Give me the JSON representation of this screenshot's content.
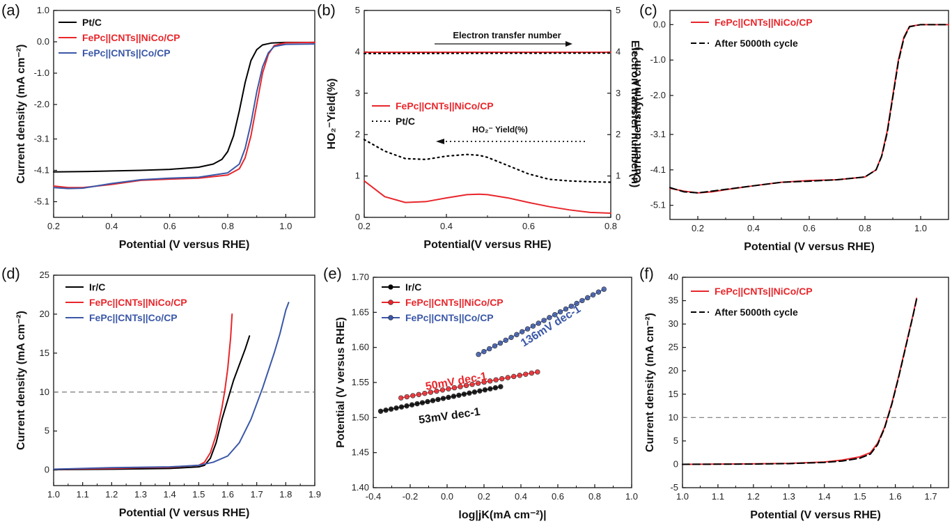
{
  "chart_data": [
    {
      "id": "a",
      "type": "line",
      "panel_label": "(a)",
      "xlabel": "Potential (V versus RHE)",
      "ylabel": "Current density (mA cm⁻²)",
      "xlim": [
        0.2,
        1.1
      ],
      "ylim": [
        -5.6,
        1.0
      ],
      "xticks": [
        "0.2",
        "0.4",
        "0.6",
        "0.8",
        "1.0"
      ],
      "xtick_values": [
        0.2,
        0.4,
        0.6,
        0.8,
        1.0
      ],
      "yticks": [
        "1.0",
        "0.0",
        "-1.0",
        "-2.0",
        "-3.1",
        "-4.1",
        "-5.1"
      ],
      "ytick_values": [
        1.0,
        0.0,
        -1.0,
        -2.0,
        -3.1,
        -4.1,
        -5.1
      ],
      "legend_position": "top-left",
      "series": [
        {
          "name": "Pt/C",
          "color": "#000000",
          "dash": "solid",
          "x": [
            0.2,
            0.3,
            0.4,
            0.5,
            0.6,
            0.7,
            0.75,
            0.78,
            0.8,
            0.82,
            0.84,
            0.86,
            0.88,
            0.9,
            0.92,
            0.95,
            1.0,
            1.1
          ],
          "y": [
            -4.15,
            -4.14,
            -4.12,
            -4.1,
            -4.07,
            -4.0,
            -3.9,
            -3.75,
            -3.5,
            -3.0,
            -2.2,
            -1.3,
            -0.6,
            -0.25,
            -0.1,
            -0.04,
            -0.02,
            -0.02
          ]
        },
        {
          "name": "FePc||CNTs||NiCo/CP",
          "color": "#e8262b",
          "dash": "solid",
          "x": [
            0.2,
            0.25,
            0.3,
            0.4,
            0.5,
            0.6,
            0.7,
            0.8,
            0.84,
            0.86,
            0.88,
            0.9,
            0.92,
            0.94,
            0.96,
            1.0,
            1.1
          ],
          "y": [
            -4.6,
            -4.65,
            -4.65,
            -4.55,
            -4.42,
            -4.38,
            -4.35,
            -4.25,
            -4.05,
            -3.7,
            -3.0,
            -2.0,
            -1.0,
            -0.4,
            -0.12,
            -0.03,
            -0.02
          ]
        },
        {
          "name": "FePc||CNTs||Co/CP",
          "color": "#3a57a7",
          "dash": "solid",
          "x": [
            0.2,
            0.25,
            0.3,
            0.4,
            0.5,
            0.6,
            0.7,
            0.8,
            0.84,
            0.86,
            0.88,
            0.9,
            0.92,
            0.94,
            0.96,
            1.0,
            1.1
          ],
          "y": [
            -4.65,
            -4.68,
            -4.67,
            -4.52,
            -4.4,
            -4.35,
            -4.32,
            -4.18,
            -3.9,
            -3.4,
            -2.6,
            -1.6,
            -0.8,
            -0.35,
            -0.15,
            -0.08,
            -0.07
          ]
        }
      ]
    },
    {
      "id": "b",
      "type": "line",
      "panel_label": "(b)",
      "xlabel": "Potential(V versus RHE)",
      "ylabel": "HO₂⁻Yield(%)",
      "ylabel_right": "Electron transfer number(n)",
      "xlim": [
        0.2,
        0.8
      ],
      "ylim": [
        0,
        5
      ],
      "ylim_right": [
        0,
        5
      ],
      "xticks": [
        "0.2",
        "0.4",
        "0.6",
        "0.8"
      ],
      "xtick_values": [
        0.2,
        0.4,
        0.6,
        0.8
      ],
      "yticks": [
        "0",
        "1",
        "2",
        "3",
        "4",
        "5"
      ],
      "ytick_values": [
        0,
        1,
        2,
        3,
        4,
        5
      ],
      "legend_position": "center-left",
      "annotations": [
        "Electron transfer number",
        "HO₂⁻ Yield(%)"
      ],
      "series": [
        {
          "name": "FePc||CNTs||NiCo/CP",
          "color": "#e8262b",
          "dash": "solid",
          "x": [
            0.2,
            0.25,
            0.3,
            0.35,
            0.4,
            0.45,
            0.48,
            0.5,
            0.55,
            0.6,
            0.65,
            0.7,
            0.75,
            0.8
          ],
          "y": [
            0.88,
            0.5,
            0.36,
            0.38,
            0.47,
            0.55,
            0.56,
            0.55,
            0.47,
            0.36,
            0.26,
            0.18,
            0.12,
            0.1
          ]
        },
        {
          "name": "Pt/C",
          "color": "#000000",
          "dash": "dotted",
          "x": [
            0.2,
            0.25,
            0.3,
            0.35,
            0.4,
            0.45,
            0.48,
            0.5,
            0.55,
            0.6,
            0.65,
            0.7,
            0.75,
            0.8
          ],
          "y": [
            1.88,
            1.6,
            1.42,
            1.4,
            1.48,
            1.52,
            1.5,
            1.45,
            1.25,
            1.05,
            0.92,
            0.88,
            0.86,
            0.85
          ]
        },
        {
          "name": "",
          "axis": "right",
          "color": "#e8262b",
          "dash": "solid",
          "x": [
            0.2,
            0.8
          ],
          "y": [
            3.99,
            3.99
          ]
        },
        {
          "name": "",
          "axis": "right",
          "color": "#000000",
          "dash": "dotted",
          "x": [
            0.2,
            0.8
          ],
          "y": [
            3.96,
            3.97
          ]
        }
      ]
    },
    {
      "id": "c",
      "type": "line",
      "panel_label": "(c)",
      "xlabel": "Potential (V versus RHE)",
      "ylabel": "Current density(mA cm⁻²)",
      "xlim": [
        0.1,
        1.1
      ],
      "ylim": [
        -5.5,
        0.4
      ],
      "xticks": [
        "0.2",
        "0.4",
        "0.6",
        "0.8",
        "1.0"
      ],
      "xtick_values": [
        0.2,
        0.4,
        0.6,
        0.8,
        1.0
      ],
      "yticks": [
        "0.0",
        "-1.0",
        "-2.0",
        "-3.1",
        "-4.1",
        "-5.1"
      ],
      "ytick_values": [
        0.0,
        -1.0,
        -2.0,
        -3.1,
        -4.1,
        -5.1
      ],
      "legend_position": "top-left",
      "series": [
        {
          "name": "FePc||CNTs||NiCo/CP",
          "color": "#e8262b",
          "dash": "solid",
          "x": [
            0.1,
            0.15,
            0.2,
            0.25,
            0.3,
            0.4,
            0.5,
            0.6,
            0.7,
            0.8,
            0.84,
            0.86,
            0.88,
            0.9,
            0.92,
            0.94,
            0.96,
            1.0,
            1.1
          ],
          "y": [
            -4.62,
            -4.7,
            -4.75,
            -4.72,
            -4.66,
            -4.55,
            -4.45,
            -4.4,
            -4.38,
            -4.3,
            -4.1,
            -3.7,
            -3.0,
            -2.0,
            -1.0,
            -0.35,
            -0.05,
            0.0,
            0.0
          ]
        },
        {
          "name": "After 5000th cycle",
          "color": "#000000",
          "dash": "dashed",
          "x": [
            0.1,
            0.15,
            0.2,
            0.25,
            0.3,
            0.4,
            0.5,
            0.6,
            0.7,
            0.8,
            0.84,
            0.86,
            0.88,
            0.9,
            0.92,
            0.94,
            0.96,
            1.0,
            1.1
          ],
          "y": [
            -4.6,
            -4.72,
            -4.75,
            -4.7,
            -4.65,
            -4.55,
            -4.45,
            -4.42,
            -4.38,
            -4.3,
            -4.1,
            -3.72,
            -3.05,
            -2.05,
            -1.05,
            -0.38,
            -0.06,
            0.0,
            0.0
          ]
        }
      ]
    },
    {
      "id": "d",
      "type": "line",
      "panel_label": "(d)",
      "xlabel": "Potential (V versus RHE)",
      "ylabel": "Current density (mA cm⁻²)",
      "xlim": [
        1.0,
        1.9
      ],
      "ylim": [
        -2,
        25
      ],
      "xticks": [
        "1.0",
        "1.1",
        "1.2",
        "1.3",
        "1.4",
        "1.5",
        "1.6",
        "1.7",
        "1.8",
        "1.9"
      ],
      "xtick_values": [
        1.0,
        1.1,
        1.2,
        1.3,
        1.4,
        1.5,
        1.6,
        1.7,
        1.8,
        1.9
      ],
      "yticks": [
        "0",
        "5",
        "10",
        "15",
        "20",
        "25"
      ],
      "ytick_values": [
        0,
        5,
        10,
        15,
        20,
        25
      ],
      "reference_line_y": 10,
      "legend_position": "top-left",
      "series": [
        {
          "name": "Ir/C",
          "color": "#000000",
          "dash": "solid",
          "x": [
            1.0,
            1.2,
            1.4,
            1.5,
            1.52,
            1.54,
            1.56,
            1.58,
            1.6,
            1.62,
            1.64,
            1.66,
            1.675
          ],
          "y": [
            0.05,
            0.1,
            0.2,
            0.4,
            0.6,
            1.5,
            3.5,
            6.5,
            9.0,
            11.5,
            13.5,
            15.5,
            17.2
          ]
        },
        {
          "name": "FePc||CNTs||NiCo/CP",
          "color": "#e8262b",
          "dash": "solid",
          "x": [
            1.0,
            1.2,
            1.3,
            1.4,
            1.5,
            1.52,
            1.54,
            1.56,
            1.58,
            1.59,
            1.6,
            1.61,
            1.615
          ],
          "y": [
            0.1,
            0.2,
            0.3,
            0.35,
            0.6,
            1.0,
            2.2,
            4.5,
            8.0,
            10.2,
            13.0,
            17.0,
            20.0
          ]
        },
        {
          "name": "FePc||CNTs||Co/CP",
          "color": "#3a57a7",
          "dash": "solid",
          "x": [
            1.0,
            1.2,
            1.4,
            1.5,
            1.55,
            1.6,
            1.64,
            1.68,
            1.72,
            1.76,
            1.78,
            1.8,
            1.81
          ],
          "y": [
            0.1,
            0.3,
            0.4,
            0.6,
            1.0,
            1.8,
            3.5,
            6.5,
            10.5,
            15.0,
            17.5,
            20.5,
            21.5
          ]
        }
      ]
    },
    {
      "id": "e",
      "type": "scatter",
      "panel_label": "(e)",
      "xlabel": "log|jK(mA cm⁻²)|",
      "ylabel": "Potential (V versus RHE)",
      "xlim": [
        -0.4,
        1.0
      ],
      "ylim": [
        1.4,
        1.7
      ],
      "xticks": [
        "-0.4",
        "-0.2",
        "0.0",
        "0.2",
        "0.4",
        "0.6",
        "0.8",
        "1.0"
      ],
      "xtick_values": [
        -0.4,
        -0.2,
        0.0,
        0.2,
        0.4,
        0.6,
        0.8,
        1.0
      ],
      "yticks": [
        "1.40",
        "1.45",
        "1.50",
        "1.55",
        "1.60",
        "1.65",
        "1.70"
      ],
      "ytick_values": [
        1.4,
        1.45,
        1.5,
        1.55,
        1.6,
        1.65,
        1.7
      ],
      "legend_position": "top-left",
      "annotations": [
        "53mV dec-1",
        "50mV dec-1",
        "136mV dec-1"
      ],
      "series": [
        {
          "name": "Ir/C",
          "color": "#000000",
          "x_start": -0.36,
          "x_end": 0.29,
          "y_start": 1.509,
          "y_end": 1.544,
          "points": 24,
          "slope_label": "53mV dec-1"
        },
        {
          "name": "FePc||CNTs||NiCo/CP",
          "color": "#e8262b",
          "x_start": -0.25,
          "x_end": 0.49,
          "y_start": 1.528,
          "y_end": 1.565,
          "points": 24,
          "slope_label": "50mV dec-1"
        },
        {
          "name": "FePc||CNTs||Co/CP",
          "color": "#3a57a7",
          "x_start": 0.17,
          "x_end": 0.85,
          "y_start": 1.59,
          "y_end": 1.683,
          "points": 24,
          "slope_label": "136mV dec-1"
        }
      ]
    },
    {
      "id": "f",
      "type": "line",
      "panel_label": "(f)",
      "xlabel": "Potential (V versus RHE)",
      "ylabel": "Current density (mA cm⁻²)",
      "xlim": [
        1.0,
        1.75
      ],
      "ylim": [
        -5,
        40
      ],
      "xticks": [
        "1.0",
        "1.1",
        "1.2",
        "1.3",
        "1.4",
        "1.5",
        "1.6",
        "1.7"
      ],
      "xtick_values": [
        1.0,
        1.1,
        1.2,
        1.3,
        1.4,
        1.5,
        1.6,
        1.7
      ],
      "yticks": [
        "-5",
        "0",
        "5",
        "10",
        "15",
        "20",
        "25",
        "30",
        "35",
        "40"
      ],
      "ytick_values": [
        -5,
        0,
        5,
        10,
        15,
        20,
        25,
        30,
        35,
        40
      ],
      "reference_line_y": 10,
      "legend_position": "top-left",
      "series": [
        {
          "name": "FePc||CNTs||NiCo/CP",
          "color": "#e8262b",
          "dash": "solid",
          "x": [
            1.0,
            1.2,
            1.3,
            1.4,
            1.45,
            1.5,
            1.53,
            1.55,
            1.57,
            1.59,
            1.61,
            1.63,
            1.65,
            1.66
          ],
          "y": [
            0.0,
            0.1,
            0.2,
            0.5,
            0.9,
            1.6,
            2.5,
            4.5,
            8.0,
            13.0,
            19.0,
            25.5,
            32.0,
            35.5
          ]
        },
        {
          "name": "After 5000th cycle",
          "color": "#000000",
          "dash": "dashed",
          "x": [
            1.0,
            1.2,
            1.3,
            1.4,
            1.45,
            1.5,
            1.53,
            1.55,
            1.57,
            1.59,
            1.61,
            1.63,
            1.65,
            1.66
          ],
          "y": [
            0.0,
            0.05,
            0.15,
            0.4,
            0.7,
            1.3,
            2.2,
            4.2,
            7.8,
            12.8,
            18.8,
            25.3,
            31.8,
            35.3
          ]
        }
      ]
    }
  ],
  "legend_labels": {
    "a": [
      {
        "text": "Pt/C",
        "color": "#000000"
      },
      {
        "text": "FePc||CNTs||NiCo/CP",
        "color": "#e8262b"
      },
      {
        "text": "FePc||CNTs||Co/CP",
        "color": "#3a57a7"
      }
    ],
    "b": [
      {
        "text": "FePc||CNTs||NiCo/CP",
        "color": "#e8262b"
      },
      {
        "text": "Pt/C",
        "color": "#000000"
      }
    ],
    "c": [
      {
        "text": "FePc||CNTs||NiCo/CP",
        "color": "#e8262b"
      },
      {
        "text": "After 5000th cycle",
        "color": "#000000"
      }
    ],
    "d": [
      {
        "text": "Ir/C",
        "color": "#000000"
      },
      {
        "text": "FePc||CNTs||NiCo/CP",
        "color": "#e8262b"
      },
      {
        "text": "FePc||CNTs||Co/CP",
        "color": "#3a57a7"
      }
    ],
    "e": [
      {
        "text": "Ir/C",
        "color": "#000000"
      },
      {
        "text": "FePc||CNTs||NiCo/CP",
        "color": "#e8262b"
      },
      {
        "text": "FePc||CNTs||Co/CP",
        "color": "#3a57a7"
      }
    ],
    "f": [
      {
        "text": "FePc||CNTs||NiCo/CP",
        "color": "#e8262b"
      },
      {
        "text": "After 5000th cycle",
        "color": "#000000"
      }
    ]
  }
}
